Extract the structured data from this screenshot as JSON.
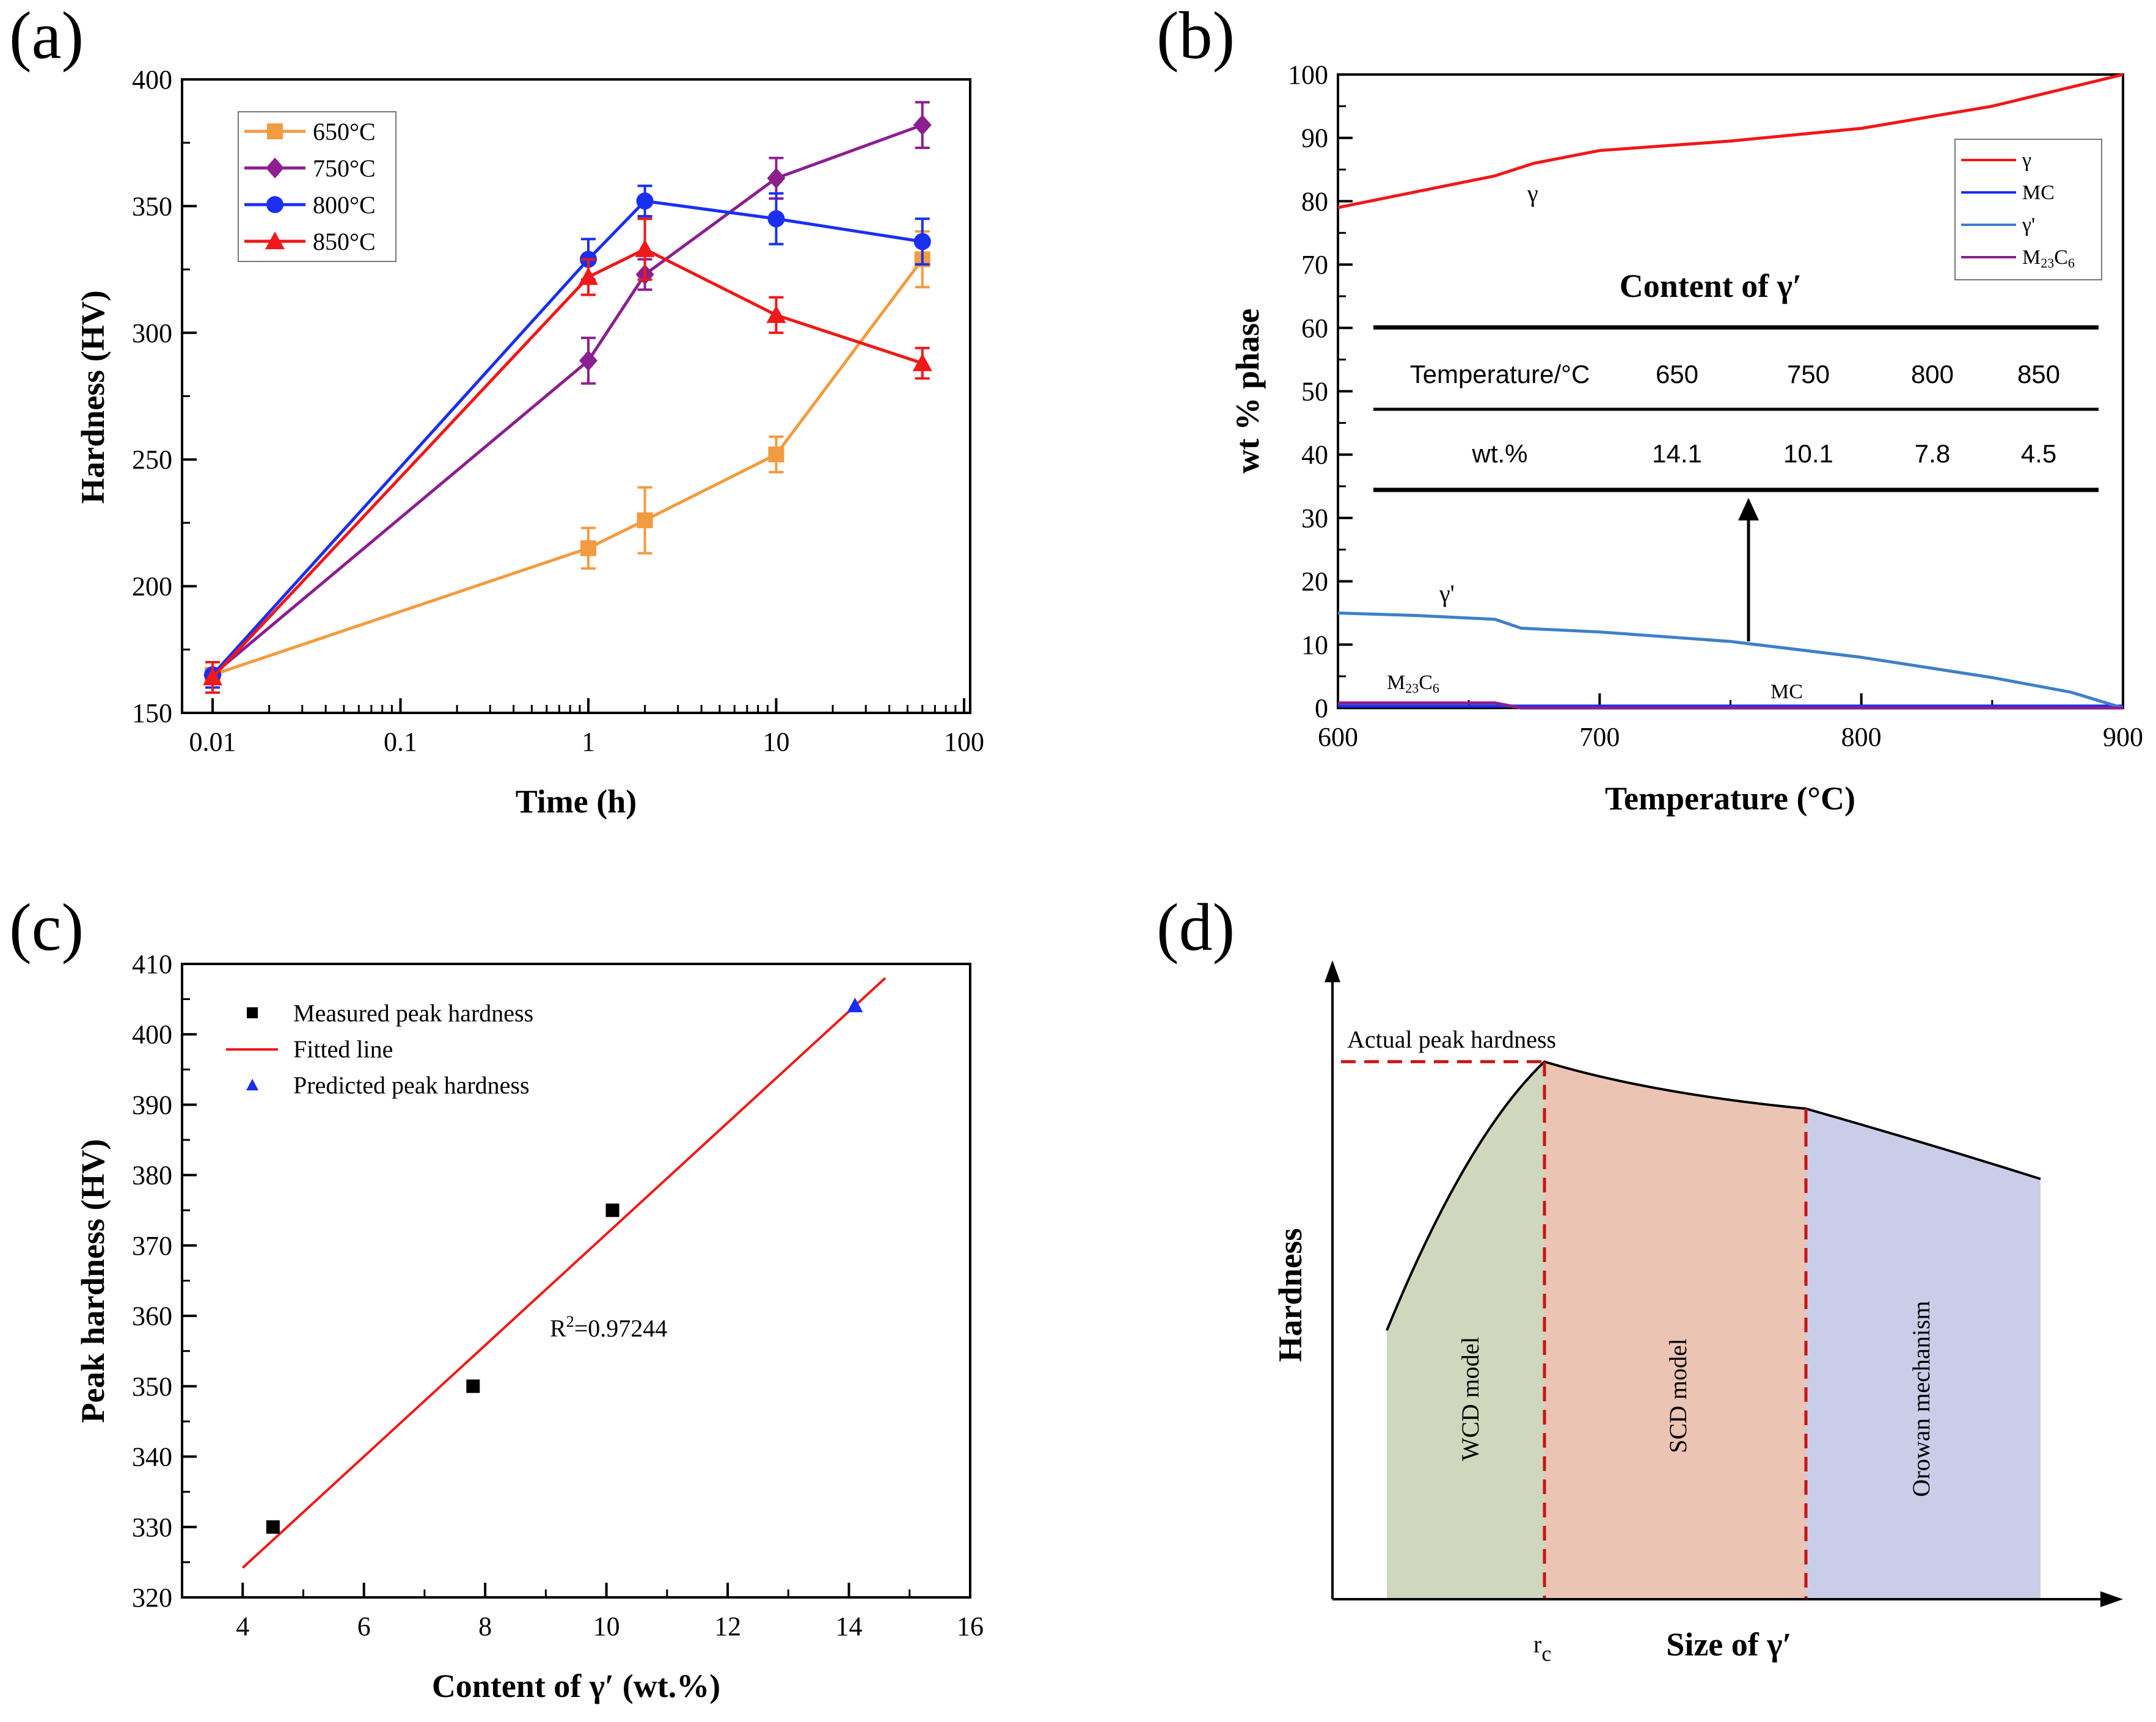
{
  "chart_data": [
    {
      "type": "line",
      "panel": "(a)",
      "xlabel": "Time (h)",
      "ylabel": "Hardness (HV)",
      "xscale": "log",
      "xlim": [
        0.01,
        100
      ],
      "ylim": [
        150,
        400
      ],
      "xticks": [
        {
          "value": 0.01,
          "label": "0.01"
        },
        {
          "value": 0.1,
          "label": "0.1"
        },
        {
          "value": 1,
          "label": "1"
        },
        {
          "value": 10,
          "label": "10"
        },
        {
          "value": 100,
          "label": "100"
        }
      ],
      "yticks": [
        {
          "value": 150,
          "label": "150"
        },
        {
          "value": 200,
          "label": "200"
        },
        {
          "value": 250,
          "label": "250"
        },
        {
          "value": 300,
          "label": "300"
        },
        {
          "value": 350,
          "label": "350"
        },
        {
          "value": 400,
          "label": "400"
        }
      ],
      "legend_position": "top-left",
      "x": [
        0.01,
        1,
        2,
        10,
        60
      ],
      "series": [
        {
          "name": "650°C",
          "color": "#f39b40",
          "marker": "square",
          "values": [
            165,
            215,
            226,
            252,
            329
          ],
          "errors": [
            5,
            8,
            13,
            7,
            11
          ]
        },
        {
          "name": "750°C",
          "color": "#8b1f8f",
          "marker": "diamond",
          "values": [
            165,
            289,
            323,
            361,
            382
          ],
          "errors": [
            5,
            9,
            6,
            8,
            9
          ]
        },
        {
          "name": "800°C",
          "color": "#1a2ff0",
          "marker": "circle",
          "values": [
            165,
            329,
            352,
            345,
            336
          ],
          "errors": [
            5,
            8,
            6,
            10,
            9
          ]
        },
        {
          "name": "850°C",
          "color": "#f01818",
          "marker": "triangle",
          "values": [
            164,
            322,
            333,
            307,
            288
          ],
          "errors": [
            6,
            7,
            12,
            7,
            6
          ]
        }
      ]
    },
    {
      "type": "line",
      "panel": "(b)",
      "xlabel": "Temperature (°C)",
      "ylabel": "wt % phase",
      "xlim": [
        600,
        900
      ],
      "ylim": [
        0,
        100
      ],
      "xticks": [
        {
          "value": 600,
          "label": "600"
        },
        {
          "value": 700,
          "label": "700"
        },
        {
          "value": 800,
          "label": "800"
        },
        {
          "value": 900,
          "label": "900"
        }
      ],
      "yticks": [
        {
          "value": 0,
          "label": "0"
        },
        {
          "value": 10,
          "label": "10"
        },
        {
          "value": 20,
          "label": "20"
        },
        {
          "value": 30,
          "label": "30"
        },
        {
          "value": 40,
          "label": "40"
        },
        {
          "value": 50,
          "label": "50"
        },
        {
          "value": 60,
          "label": "60"
        },
        {
          "value": 70,
          "label": "70"
        },
        {
          "value": 80,
          "label": "80"
        },
        {
          "value": 90,
          "label": "90"
        },
        {
          "value": 100,
          "label": "100"
        }
      ],
      "legend_position": "top-right",
      "series": [
        {
          "name": "γ",
          "color": "#f01818",
          "x": [
            600,
            630,
            660,
            675,
            700,
            750,
            800,
            850,
            900
          ],
          "values": [
            79,
            81.5,
            84,
            86,
            88,
            89.5,
            91.5,
            95,
            100
          ]
        },
        {
          "name": "MC",
          "color": "#1a2ff0",
          "x": [
            600,
            900
          ],
          "values": [
            0.3,
            0.3
          ]
        },
        {
          "name": "γ′",
          "color": "#3f7fc8",
          "x": [
            600,
            630,
            660,
            670,
            700,
            750,
            800,
            850,
            880,
            900
          ],
          "values": [
            15,
            14.6,
            14,
            12.6,
            12,
            10.5,
            8,
            4.8,
            2.5,
            0
          ]
        },
        {
          "name": "M₂₃C₆",
          "color": "#8b1f8f",
          "x": [
            600,
            660,
            670,
            900
          ],
          "values": [
            0.8,
            0.8,
            0,
            0
          ]
        }
      ],
      "curve_labels": {
        "gamma": "γ",
        "gamma_prime": "γ'",
        "m23c6_base": "M",
        "m23c6_sub1": "23",
        "m23c6_c": "C",
        "m23c6_sub2": "6",
        "mc": "MC"
      },
      "legend_labels": {
        "gamma": "γ",
        "mc": "MC",
        "gamma_prime": "γ'",
        "m23c6_base": "M",
        "m23c6_sub1": "23",
        "m23c6_c": "C",
        "m23c6_sub2": "6"
      },
      "table": {
        "title": "Content of γ′",
        "row1_label": "Temperature/°C",
        "row1_values": [
          "650",
          "750",
          "800",
          "850"
        ],
        "row2_label": "wt.%",
        "row2_values": [
          "14.1",
          "10.1",
          "7.8",
          "4.5"
        ]
      }
    },
    {
      "type": "scatter",
      "panel": "(c)",
      "xlabel": "Content of γ′ (wt.%)",
      "ylabel": "Peak hardness (HV)",
      "xlim": [
        3,
        16
      ],
      "ylim": [
        320,
        410
      ],
      "xticks": [
        {
          "value": 4,
          "label": "4"
        },
        {
          "value": 6,
          "label": "6"
        },
        {
          "value": 8,
          "label": "8"
        },
        {
          "value": 10,
          "label": "10"
        },
        {
          "value": 12,
          "label": "12"
        },
        {
          "value": 14,
          "label": "14"
        },
        {
          "value": 16,
          "label": "16"
        }
      ],
      "yticks": [
        {
          "value": 320,
          "label": "320"
        },
        {
          "value": 330,
          "label": "330"
        },
        {
          "value": 340,
          "label": "340"
        },
        {
          "value": 350,
          "label": "350"
        },
        {
          "value": 360,
          "label": "360"
        },
        {
          "value": 370,
          "label": "370"
        },
        {
          "value": 380,
          "label": "380"
        },
        {
          "value": 390,
          "label": "390"
        },
        {
          "value": 400,
          "label": "400"
        },
        {
          "value": 410,
          "label": "410"
        }
      ],
      "legend_position": "top-left",
      "measured": {
        "name": "Measured peak hardness",
        "color": "#000000",
        "x": [
          4.5,
          7.8,
          10.1
        ],
        "values": [
          330,
          350,
          375
        ]
      },
      "fit": {
        "name": "Fitted line",
        "color": "#f01818",
        "x": [
          4.0,
          14.6
        ],
        "values": [
          324.2,
          408.0
        ]
      },
      "predicted": {
        "name": "Predicted peak hardness",
        "color": "#1a2ff0",
        "x": [
          14.1
        ],
        "values": [
          404
        ]
      },
      "r2_prefix": "R",
      "r2_sup": "2",
      "r2_value": "=0.97244"
    },
    {
      "type": "area",
      "panel": "(d)",
      "xlabel": "Size of γ′",
      "ylabel": "Hardness",
      "x_marker": "r",
      "x_marker_sub": "c",
      "peak_label": "Actual peak hardness",
      "regions": [
        {
          "name": "WCD model",
          "color": "#cfd8bc"
        },
        {
          "name": "SCD model",
          "color": "#ecc4b4"
        },
        {
          "name": "Orowan mechanism",
          "color": "#cacde8"
        }
      ]
    }
  ]
}
